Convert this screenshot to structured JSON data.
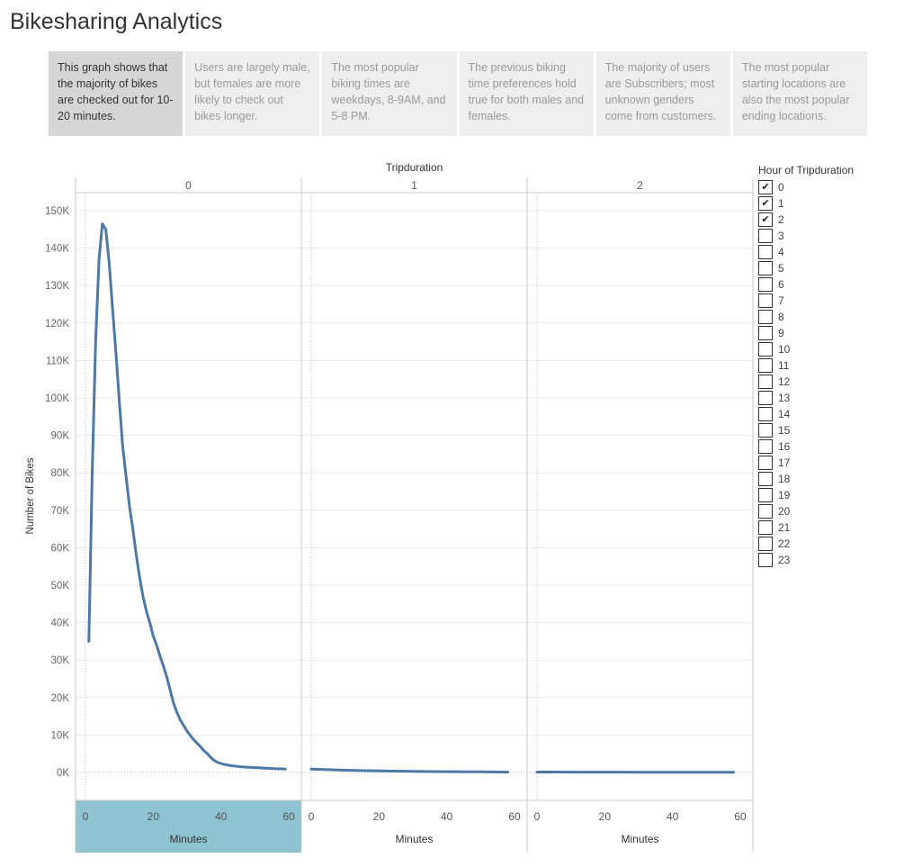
{
  "page": {
    "title": "Bikesharing Analytics"
  },
  "story_points": [
    {
      "text": "This graph shows that the majority of bikes are checked out for 10-20 minutes.",
      "active": true
    },
    {
      "text": "Users are largely male, but females are more likely to check out bikes longer.",
      "active": false
    },
    {
      "text": "The most popular biking times are weekdays, 8-9AM, and 5-8 PM.",
      "active": false
    },
    {
      "text": "The previous biking time preferences hold true for both males and females.",
      "active": false
    },
    {
      "text": "The majority of users are Subscribers; most unknown genders come from customers.",
      "active": false
    },
    {
      "text": "The most popular starting locations are also the most popular ending locations.",
      "active": false
    }
  ],
  "legend": {
    "title": "Hour of Tripduration",
    "items": [
      {
        "label": "0",
        "checked": true
      },
      {
        "label": "1",
        "checked": true
      },
      {
        "label": "2",
        "checked": true
      },
      {
        "label": "3",
        "checked": false
      },
      {
        "label": "4",
        "checked": false
      },
      {
        "label": "5",
        "checked": false
      },
      {
        "label": "6",
        "checked": false
      },
      {
        "label": "7",
        "checked": false
      },
      {
        "label": "8",
        "checked": false
      },
      {
        "label": "9",
        "checked": false
      },
      {
        "label": "10",
        "checked": false
      },
      {
        "label": "11",
        "checked": false
      },
      {
        "label": "12",
        "checked": false
      },
      {
        "label": "13",
        "checked": false
      },
      {
        "label": "14",
        "checked": false
      },
      {
        "label": "15",
        "checked": false
      },
      {
        "label": "16",
        "checked": false
      },
      {
        "label": "17",
        "checked": false
      },
      {
        "label": "18",
        "checked": false
      },
      {
        "label": "19",
        "checked": false
      },
      {
        "label": "20",
        "checked": false
      },
      {
        "label": "21",
        "checked": false
      },
      {
        "label": "22",
        "checked": false
      },
      {
        "label": "23",
        "checked": false
      }
    ]
  },
  "colors": {
    "line": "#4e79a7",
    "highlight_axis": "#8fc3d1",
    "grid": "#ececec",
    "axis": "#c8c8c8"
  },
  "chart_data": {
    "type": "line",
    "title": "",
    "column_header": "Tripduration",
    "ylabel": "Number of Bikes",
    "xlabel": "Minutes",
    "ylim": [
      0,
      155000
    ],
    "yticks": [
      0,
      10000,
      20000,
      30000,
      40000,
      50000,
      60000,
      70000,
      80000,
      90000,
      100000,
      110000,
      120000,
      130000,
      140000,
      150000
    ],
    "ytick_labels": [
      "0K",
      "10K",
      "20K",
      "30K",
      "40K",
      "50K",
      "60K",
      "70K",
      "80K",
      "90K",
      "100K",
      "110K",
      "120K",
      "130K",
      "140K",
      "150K"
    ],
    "xlim": [
      -3,
      63
    ],
    "xticks": [
      0,
      20,
      40,
      60
    ],
    "xtick_labels": [
      "0",
      "20",
      "40",
      "60"
    ],
    "grid": true,
    "panels": [
      {
        "label": "0",
        "highlighted": true,
        "x": [
          1,
          2,
          3,
          4,
          5,
          6,
          7,
          8,
          9,
          10,
          11,
          12,
          13,
          14,
          15,
          16,
          17,
          18,
          19,
          20,
          21,
          22,
          23,
          24,
          25,
          26,
          27,
          28,
          29,
          30,
          31,
          32,
          33,
          34,
          35,
          36,
          37,
          38,
          39,
          40,
          41,
          42,
          43,
          44,
          45,
          46,
          47,
          48,
          49,
          50,
          51,
          52,
          53,
          54,
          55,
          56,
          57,
          58,
          59
        ],
        "y": [
          35000,
          80000,
          115000,
          137000,
          146500,
          145000,
          136000,
          124000,
          112000,
          99000,
          87000,
          79000,
          71000,
          65000,
          58000,
          52000,
          47000,
          43000,
          40000,
          36500,
          34000,
          31000,
          28500,
          25500,
          22000,
          18500,
          16000,
          14000,
          12500,
          11000,
          9800,
          8700,
          7800,
          6800,
          5800,
          5000,
          4000,
          3200,
          2700,
          2400,
          2150,
          2000,
          1800,
          1700,
          1600,
          1500,
          1450,
          1400,
          1350,
          1300,
          1250,
          1200,
          1150,
          1100,
          1050,
          1000,
          980,
          950,
          900
        ]
      },
      {
        "label": "1",
        "highlighted": false,
        "x": [
          0,
          5,
          10,
          15,
          20,
          25,
          30,
          35,
          40,
          45,
          50,
          55,
          58
        ],
        "y": [
          900,
          750,
          600,
          500,
          420,
          360,
          300,
          250,
          220,
          190,
          160,
          130,
          100
        ]
      },
      {
        "label": "2",
        "highlighted": false,
        "x": [
          0,
          5,
          10,
          15,
          20,
          25,
          30,
          35,
          40,
          45,
          50,
          55,
          58
        ],
        "y": [
          120,
          110,
          100,
          95,
          90,
          85,
          80,
          75,
          70,
          65,
          60,
          55,
          50
        ]
      }
    ]
  }
}
